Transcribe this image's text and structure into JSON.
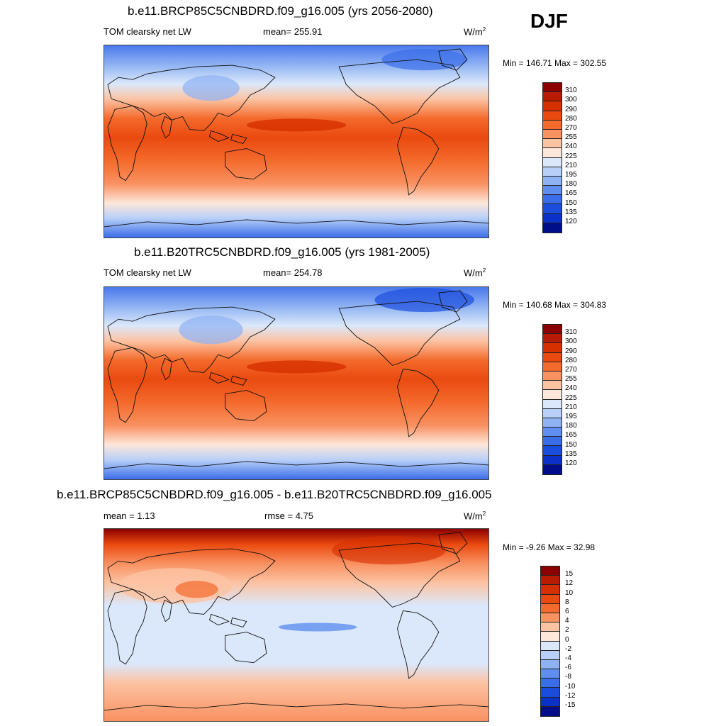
{
  "season": "DJF",
  "units_label": "W/m",
  "units_exp": "2",
  "panels": [
    {
      "title": "b.e11.BRCP85C5CNBDRD.f09_g16.005 (yrs 2056-2080)",
      "variable": "TOM clearsky net LW",
      "mean": "mean= 255.91",
      "minmax": "Min = 146.71 Max = 302.55"
    },
    {
      "title": "b.e11.B20TRC5CNBDRD.f09_g16.005 (yrs 1981-2005)",
      "variable": "TOM clearsky net LW",
      "mean": "mean= 254.78",
      "minmax": "Min = 140.68 Max = 304.83"
    },
    {
      "title": "b.e11.BRCP85C5CNBDRD.f09_g16.005 - b.e11.B20TRC5CNBDRD.f09_g16.005",
      "mean": "mean =   1.13",
      "rmse": "rmse =   4.75",
      "minmax": "Min =  -9.26 Max =  32.98"
    }
  ],
  "colorbar_abs": {
    "labels": [
      "310",
      "300",
      "290",
      "280",
      "270",
      "255",
      "240",
      "225",
      "210",
      "195",
      "180",
      "165",
      "150",
      "135",
      "120"
    ],
    "colors": [
      "#8b0000",
      "#b71c00",
      "#d62f00",
      "#ea4a0f",
      "#f46a2c",
      "#f99161",
      "#fcc3a3",
      "#fde7da",
      "#dbe8fb",
      "#b8cff8",
      "#8fb2f3",
      "#5f8ef0",
      "#3a6ee8",
      "#1b4ddd",
      "#0a32c8",
      "#000e8a"
    ]
  },
  "colorbar_diff": {
    "labels": [
      "15",
      "12",
      "10",
      "8",
      "6",
      "4",
      "2",
      "0",
      "-2",
      "-4",
      "-6",
      "-8",
      "-10",
      "-12",
      "-15"
    ],
    "colors": [
      "#8b0000",
      "#b71c00",
      "#d62f00",
      "#ea4a0f",
      "#f46a2c",
      "#f99161",
      "#fcc3a3",
      "#fde7da",
      "#dbe8fb",
      "#b8cff8",
      "#8fb2f3",
      "#5f8ef0",
      "#3a6ee8",
      "#1b4ddd",
      "#0a32c8",
      "#000e8a"
    ]
  }
}
